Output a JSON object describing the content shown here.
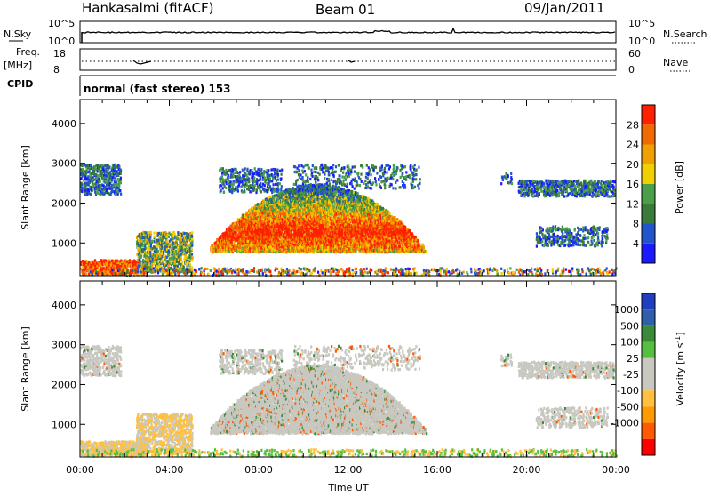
{
  "header": {
    "station": "Hankasalmi (fitACF)",
    "beam": "Beam 01",
    "date": "09/Jan/2011"
  },
  "strips": {
    "nsky_label": "N.Sky",
    "nsky_top": "10^5",
    "nsky_bottom": "10^0",
    "nsearch_label": "N.Search",
    "nsearch_top": "10^5",
    "nsearch_bottom": "10^0",
    "freq_label": "Freq.",
    "freq_unit": "[MHz]",
    "freq_top": "18",
    "freq_bottom": "8",
    "nave_label": "Nave",
    "nave_top": "60",
    "nave_bottom": "0",
    "cpid_label": "CPID",
    "cpid_text": "normal (fast stereo) 153"
  },
  "colors": {
    "power_scale": [
      "#1a1aff",
      "#2255cc",
      "#3a7a3a",
      "#4aa04a",
      "#f0d000",
      "#f0a000",
      "#f06a00",
      "#ff2000"
    ],
    "velocity_scale": [
      "#1f3fc0",
      "#2e5faa",
      "#3a8a3a",
      "#55c040",
      "#c8c8c0",
      "#c8c8c0",
      "#ffc040",
      "#ff9a00",
      "#ff5a00",
      "#ff0000"
    ]
  },
  "chart_data": [
    {
      "type": "heatmap",
      "name": "power",
      "ylabel": "Slant Range [km]",
      "xlabel": "",
      "ylim": [
        180,
        4600
      ],
      "xlim_hours": [
        0,
        24
      ],
      "yticks": [
        1000,
        2000,
        3000,
        4000
      ],
      "colorbar_label": "Power [dB]",
      "colorbar_ticks": [
        4,
        8,
        12,
        16,
        20,
        24,
        28
      ],
      "colorbar_range": [
        0,
        32
      ]
    },
    {
      "type": "heatmap",
      "name": "velocity",
      "ylabel": "Slant Range [km]",
      "xlabel": "Time UT",
      "ylim": [
        180,
        4600
      ],
      "xlim_hours": [
        0,
        24
      ],
      "yticks": [
        1000,
        2000,
        3000,
        4000
      ],
      "xticks": [
        "00:00",
        "04:00",
        "08:00",
        "12:00",
        "16:00",
        "20:00",
        "00:00"
      ],
      "colorbar_label": "Velocity [m s",
      "colorbar_unit_sup": "-1",
      "colorbar_unit_close": "]",
      "colorbar_ticks": [
        "1000",
        "500",
        "100",
        "25",
        "-25",
        "-100",
        "-500",
        "-1000"
      ]
    }
  ]
}
